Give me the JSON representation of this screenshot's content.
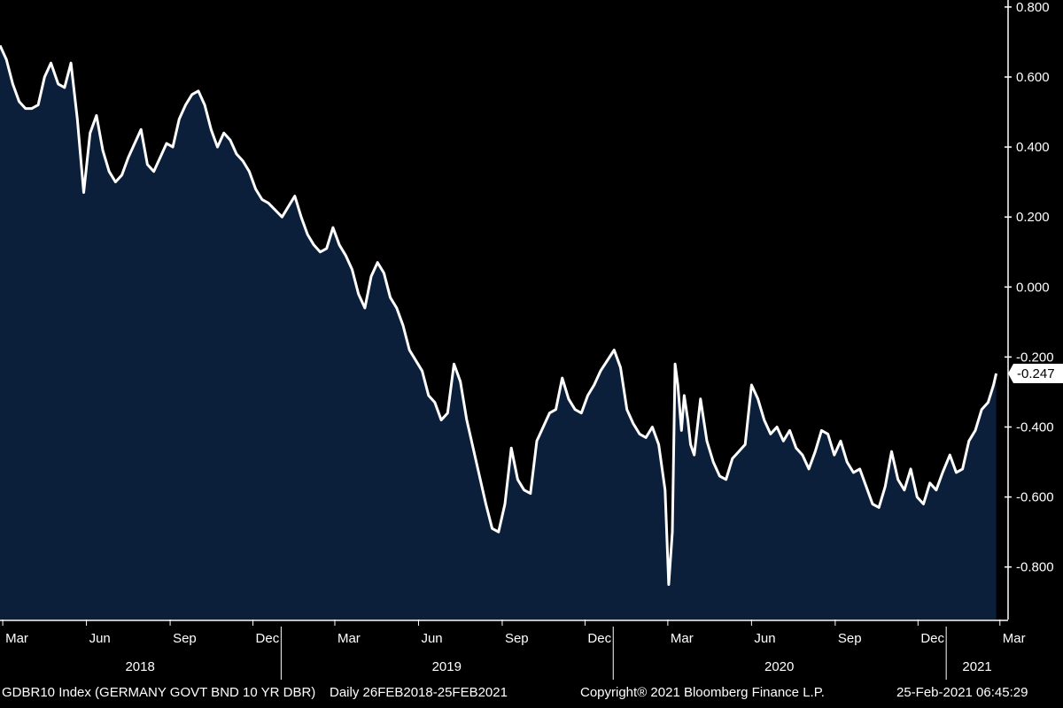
{
  "chart_data": {
    "type": "area",
    "title": "",
    "xlabel": "",
    "ylabel": "",
    "ylim": [
      -0.95,
      0.82
    ],
    "y_ticks": [
      "0.800",
      "0.600",
      "0.400",
      "0.200",
      "0.000",
      "-0.200",
      "-0.400",
      "-0.600",
      "-0.800"
    ],
    "y_tick_values": [
      0.8,
      0.6,
      0.4,
      0.2,
      0.0,
      -0.2,
      -0.4,
      -0.6,
      -0.8
    ],
    "month_ticks": [
      {
        "label": "Mar",
        "date": "2018-03-01"
      },
      {
        "label": "Jun",
        "date": "2018-06-01"
      },
      {
        "label": "Sep",
        "date": "2018-09-01"
      },
      {
        "label": "Dec",
        "date": "2018-12-01"
      },
      {
        "label": "Mar",
        "date": "2019-03-01"
      },
      {
        "label": "Jun",
        "date": "2019-06-01"
      },
      {
        "label": "Sep",
        "date": "2019-09-01"
      },
      {
        "label": "Dec",
        "date": "2019-12-01"
      },
      {
        "label": "Mar",
        "date": "2020-03-01"
      },
      {
        "label": "Jun",
        "date": "2020-06-01"
      },
      {
        "label": "Sep",
        "date": "2020-09-01"
      },
      {
        "label": "Dec",
        "date": "2020-12-01"
      },
      {
        "label": "Mar",
        "date": "2021-03-01"
      }
    ],
    "years": [
      {
        "label": "2018",
        "from": "2018-02-26",
        "to": "2018-12-31"
      },
      {
        "label": "2019",
        "from": "2019-01-01",
        "to": "2019-12-31"
      },
      {
        "label": "2020",
        "from": "2020-01-01",
        "to": "2020-12-31"
      },
      {
        "label": "2021",
        "from": "2021-01-01",
        "to": "2021-03-10"
      }
    ],
    "x_range": [
      "2018-02-26",
      "2021-03-10"
    ],
    "last_value_label": "-0.247",
    "colors": {
      "background": "#000000",
      "area": "#0b1f3a",
      "line": "#ffffff",
      "axis": "#ffffff"
    },
    "series": [
      {
        "dates": [
          "2018-02-26",
          "2018-03-05",
          "2018-03-12",
          "2018-03-19",
          "2018-03-26",
          "2018-04-02",
          "2018-04-09",
          "2018-04-16",
          "2018-04-23",
          "2018-05-01",
          "2018-05-08",
          "2018-05-15",
          "2018-05-22",
          "2018-05-29",
          "2018-06-05",
          "2018-06-12",
          "2018-06-19",
          "2018-06-26",
          "2018-07-03",
          "2018-07-10",
          "2018-07-17",
          "2018-07-24",
          "2018-07-31",
          "2018-08-07",
          "2018-08-14",
          "2018-08-21",
          "2018-08-28",
          "2018-09-04",
          "2018-09-11",
          "2018-09-18",
          "2018-09-25",
          "2018-10-02",
          "2018-10-09",
          "2018-10-16",
          "2018-10-23",
          "2018-10-30",
          "2018-11-06",
          "2018-11-13",
          "2018-11-20",
          "2018-11-27",
          "2018-12-04",
          "2018-12-11",
          "2018-12-18",
          "2019-01-02",
          "2019-01-09",
          "2019-01-16",
          "2019-01-23",
          "2019-01-30",
          "2019-02-06",
          "2019-02-13",
          "2019-02-20",
          "2019-02-27",
          "2019-03-06",
          "2019-03-13",
          "2019-03-20",
          "2019-03-27",
          "2019-04-03",
          "2019-04-10",
          "2019-04-17",
          "2019-04-24",
          "2019-05-01",
          "2019-05-08",
          "2019-05-15",
          "2019-05-22",
          "2019-05-29",
          "2019-06-05",
          "2019-06-12",
          "2019-06-19",
          "2019-06-26",
          "2019-07-03",
          "2019-07-10",
          "2019-07-17",
          "2019-07-24",
          "2019-07-31",
          "2019-08-07",
          "2019-08-14",
          "2019-08-21",
          "2019-08-28",
          "2019-09-04",
          "2019-09-11",
          "2019-09-18",
          "2019-09-25",
          "2019-10-02",
          "2019-10-09",
          "2019-10-16",
          "2019-10-23",
          "2019-10-30",
          "2019-11-06",
          "2019-11-13",
          "2019-11-20",
          "2019-11-27",
          "2019-12-04",
          "2019-12-11",
          "2019-12-18",
          "2020-01-02",
          "2020-01-09",
          "2020-01-16",
          "2020-01-23",
          "2020-01-30",
          "2020-02-06",
          "2020-02-13",
          "2020-02-20",
          "2020-02-27",
          "2020-03-02",
          "2020-03-06",
          "2020-03-09",
          "2020-03-12",
          "2020-03-16",
          "2020-03-19",
          "2020-03-23",
          "2020-03-26",
          "2020-03-30",
          "2020-04-06",
          "2020-04-13",
          "2020-04-20",
          "2020-04-27",
          "2020-05-04",
          "2020-05-11",
          "2020-05-18",
          "2020-05-25",
          "2020-06-01",
          "2020-06-08",
          "2020-06-15",
          "2020-06-22",
          "2020-06-29",
          "2020-07-06",
          "2020-07-13",
          "2020-07-20",
          "2020-07-27",
          "2020-08-03",
          "2020-08-10",
          "2020-08-17",
          "2020-08-24",
          "2020-08-31",
          "2020-09-07",
          "2020-09-14",
          "2020-09-21",
          "2020-09-28",
          "2020-10-05",
          "2020-10-12",
          "2020-10-19",
          "2020-10-26",
          "2020-11-02",
          "2020-11-09",
          "2020-11-16",
          "2020-11-23",
          "2020-11-30",
          "2020-12-07",
          "2020-12-14",
          "2020-12-21",
          "2020-12-28",
          "2021-01-05",
          "2021-01-12",
          "2021-01-19",
          "2021-01-26",
          "2021-02-02",
          "2021-02-09",
          "2021-02-16",
          "2021-02-22",
          "2021-02-25"
        ],
        "values": [
          0.69,
          0.65,
          0.58,
          0.53,
          0.51,
          0.51,
          0.52,
          0.6,
          0.64,
          0.58,
          0.57,
          0.64,
          0.48,
          0.27,
          0.44,
          0.49,
          0.39,
          0.33,
          0.3,
          0.32,
          0.37,
          0.41,
          0.45,
          0.35,
          0.33,
          0.37,
          0.41,
          0.4,
          0.48,
          0.52,
          0.55,
          0.56,
          0.52,
          0.45,
          0.4,
          0.44,
          0.42,
          0.38,
          0.36,
          0.33,
          0.28,
          0.25,
          0.24,
          0.2,
          0.23,
          0.26,
          0.2,
          0.15,
          0.12,
          0.1,
          0.11,
          0.17,
          0.12,
          0.09,
          0.05,
          -0.02,
          -0.06,
          0.03,
          0.07,
          0.04,
          -0.03,
          -0.06,
          -0.11,
          -0.18,
          -0.21,
          -0.24,
          -0.31,
          -0.33,
          -0.38,
          -0.36,
          -0.22,
          -0.27,
          -0.38,
          -0.46,
          -0.54,
          -0.62,
          -0.69,
          -0.7,
          -0.62,
          -0.46,
          -0.55,
          -0.58,
          -0.59,
          -0.44,
          -0.4,
          -0.36,
          -0.35,
          -0.26,
          -0.32,
          -0.35,
          -0.36,
          -0.31,
          -0.28,
          -0.24,
          -0.18,
          -0.23,
          -0.35,
          -0.39,
          -0.42,
          -0.43,
          -0.4,
          -0.45,
          -0.58,
          -0.85,
          -0.7,
          -0.22,
          -0.28,
          -0.41,
          -0.31,
          -0.38,
          -0.45,
          -0.48,
          -0.32,
          -0.44,
          -0.5,
          -0.54,
          -0.55,
          -0.49,
          -0.47,
          -0.45,
          -0.28,
          -0.32,
          -0.38,
          -0.42,
          -0.4,
          -0.44,
          -0.41,
          -0.46,
          -0.48,
          -0.52,
          -0.47,
          -0.41,
          -0.42,
          -0.48,
          -0.44,
          -0.5,
          -0.53,
          -0.52,
          -0.57,
          -0.62,
          -0.63,
          -0.57,
          -0.47,
          -0.55,
          -0.58,
          -0.52,
          -0.6,
          -0.62,
          -0.56,
          -0.58,
          -0.53,
          -0.48,
          -0.53,
          -0.52,
          -0.44,
          -0.41,
          -0.35,
          -0.33,
          -0.28,
          -0.247
        ]
      }
    ]
  },
  "footer": {
    "ticker": "GDBR10 Index (GERMANY GOVT BND 10 YR DBR)",
    "range": "Daily 26FEB2018-25FEB2021",
    "copyright": "Copyright® 2021 Bloomberg Finance L.P.",
    "timestamp": "25-Feb-2021 06:45:29"
  }
}
